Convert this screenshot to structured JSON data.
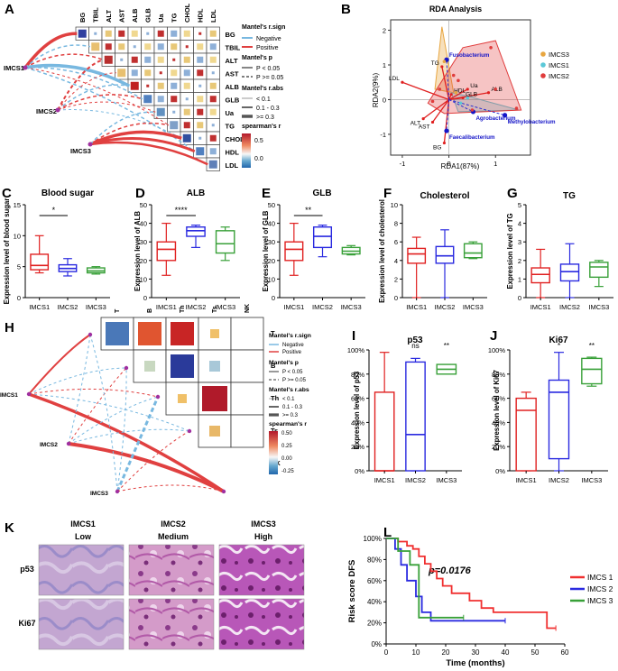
{
  "panels": {
    "A": {
      "letter": "A",
      "vars": [
        "BG",
        "TBIL",
        "ALT",
        "AST",
        "ALB",
        "GLB",
        "Ua",
        "TG",
        "CHOL",
        "HDL",
        "LDL"
      ],
      "groups": [
        "IMCS1",
        "IMCS2",
        "IMCS3"
      ],
      "legend": {
        "sign_title": "Mantel's r.sign",
        "neg": "Negative",
        "pos": "Positive",
        "p_title": "Mantel's p",
        "p1": "P < 0.05",
        "p2": "P >= 0.05",
        "r_title": "Mantel's r.abs",
        "r1": "< 0.1",
        "r2": "0.1 - 0.3",
        "r3": ">= 0.3",
        "s_title": "spearman's r",
        "s_ticks": [
          "0.5",
          "0.0"
        ]
      }
    },
    "B": {
      "letter": "B",
      "title": "RDA Analysis",
      "xlabel": "RDA1(87%)",
      "ylabel": "RDA2(9%)",
      "legend": [
        "IMCS3",
        "IMCS1",
        "IMCS2"
      ],
      "legend_colors": [
        "#e8a640",
        "#5bc8d8",
        "#e03c3c"
      ],
      "env_vectors": [
        {
          "name": "TG",
          "dx": -0.15,
          "dy": 0.95
        },
        {
          "name": "LDL",
          "dx": -1.0,
          "dy": 0.5
        },
        {
          "name": "ALB",
          "dx": 0.85,
          "dy": 0.2
        },
        {
          "name": "Ua",
          "dx": 0.4,
          "dy": 0.3
        },
        {
          "name": "ALT",
          "dx": -0.55,
          "dy": -0.55
        },
        {
          "name": "AST",
          "dx": -0.35,
          "dy": -0.65
        },
        {
          "name": "BG",
          "dx": -0.1,
          "dy": -1.25
        },
        {
          "name": "HDL",
          "dx": 0.05,
          "dy": 0.15
        },
        {
          "name": "GLB",
          "dx": 0.3,
          "dy": 0.05
        }
      ],
      "species": [
        {
          "name": "Fusobacterium",
          "x": -0.05,
          "y": 1.15
        },
        {
          "name": "Agrobacterium",
          "x": 0.52,
          "y": -0.35
        },
        {
          "name": "Methylobacterium",
          "x": 1.2,
          "y": -0.45
        },
        {
          "name": "Faecalibacterium",
          "x": -0.05,
          "y": -0.9
        }
      ]
    },
    "C": {
      "letter": "C",
      "title": "Blood sugar",
      "ylabel": "Expression level of blood sugar",
      "yticks": [
        "0",
        "5",
        "10",
        "15"
      ],
      "sig": "*"
    },
    "D": {
      "letter": "D",
      "title": "ALB",
      "ylabel": "Expression level of ALB",
      "yticks": [
        "0",
        "10",
        "20",
        "30",
        "40",
        "50"
      ],
      "sig": "****"
    },
    "E": {
      "letter": "E",
      "title": "GLB",
      "ylabel": "Expression level of GLB",
      "yticks": [
        "0",
        "10",
        "20",
        "30",
        "40",
        "50"
      ],
      "sig": "**"
    },
    "F": {
      "letter": "F",
      "title": "Cholesterol",
      "ylabel": "Expression level of cholesterol",
      "yticks": [
        "0",
        "2",
        "4",
        "6",
        "8",
        "10"
      ]
    },
    "G": {
      "letter": "G",
      "title": "TG",
      "ylabel": "Expression level of TG",
      "yticks": [
        "0",
        "1",
        "2",
        "3",
        "4",
        "5"
      ]
    },
    "H": {
      "letter": "H",
      "cells": [
        "T",
        "B",
        "Th",
        "Ts",
        "NK"
      ],
      "groups": [
        "IMCS1",
        "IMCS2",
        "IMCS3"
      ],
      "legend": {
        "sign_title": "Mantel's r.sign",
        "neg": "Negative",
        "pos": "Positive",
        "p_title": "Mantel's p",
        "p1": "P < 0.05",
        "p2": "P >= 0.05",
        "r_title": "Mantel's r.abs",
        "r1": "< 0.1",
        "r2": "0.1 - 0.3",
        "r3": ">= 0.3",
        "s_title": "spearman's r",
        "s_ticks": [
          "0.50",
          "0.25",
          "0.00",
          "-0.25"
        ]
      }
    },
    "I": {
      "letter": "I",
      "title": "p53",
      "ylabel": "Expression level of p53",
      "yticks": [
        "0%",
        "20%",
        "40%",
        "60%",
        "80%",
        "100%"
      ],
      "sig": [
        "ns",
        "**"
      ]
    },
    "J": {
      "letter": "J",
      "title": "Ki67",
      "ylabel": "Expression level of Ki67",
      "yticks": [
        "0%",
        "20%",
        "40%",
        "60%",
        "80%",
        "100%"
      ],
      "sig": [
        "*",
        "**"
      ]
    },
    "K": {
      "letter": "K",
      "cols": [
        {
          "name": "IMCS1",
          "level": "Low"
        },
        {
          "name": "IMCS2",
          "level": "Medium"
        },
        {
          "name": "IMCS3",
          "level": "High"
        }
      ],
      "rows": [
        "p53",
        "Ki67"
      ]
    },
    "L": {
      "letter": "L",
      "ylabel": "Risk score DFS",
      "xlabel": "Time (months)",
      "pvalue": "p=0.0176",
      "xticks": [
        "0",
        "10",
        "20",
        "30",
        "40",
        "50",
        "60"
      ],
      "yticks": [
        "0%",
        "20%",
        "40%",
        "60%",
        "80%",
        "100%"
      ],
      "legend": [
        "IMCS 1",
        "IMCS 2",
        "IMCS 3"
      ]
    }
  },
  "box_categories": [
    "IMCS1",
    "IMCS2",
    "IMCS3"
  ],
  "box_colors": [
    "#e02020",
    "#2a2ae0",
    "#38a038"
  ],
  "chart_data": [
    {
      "type": "box",
      "panel": "C",
      "title": "Blood sugar",
      "ylim": [
        0,
        15
      ],
      "categories": [
        "IMCS1",
        "IMCS2",
        "IMCS3"
      ],
      "boxes": [
        {
          "min": 4,
          "q1": 4.5,
          "med": 5.2,
          "q3": 7,
          "max": 10
        },
        {
          "min": 3.5,
          "q1": 4.2,
          "med": 4.7,
          "q3": 5.3,
          "max": 6.3
        },
        {
          "min": 3.8,
          "q1": 4,
          "med": 4.3,
          "q3": 4.8,
          "max": 5
        }
      ]
    },
    {
      "type": "box",
      "panel": "D",
      "title": "ALB",
      "ylim": [
        0,
        50
      ],
      "categories": [
        "IMCS1",
        "IMCS2",
        "IMCS3"
      ],
      "boxes": [
        {
          "min": 12,
          "q1": 20,
          "med": 26,
          "q3": 30,
          "max": 40
        },
        {
          "min": 27,
          "q1": 33,
          "med": 36,
          "q3": 38,
          "max": 39
        },
        {
          "min": 20,
          "q1": 24,
          "med": 29,
          "q3": 36,
          "max": 38
        }
      ]
    },
    {
      "type": "box",
      "panel": "E",
      "title": "GLB",
      "ylim": [
        0,
        50
      ],
      "categories": [
        "IMCS1",
        "IMCS2",
        "IMCS3"
      ],
      "boxes": [
        {
          "min": 12,
          "q1": 20,
          "med": 26,
          "q3": 30,
          "max": 40
        },
        {
          "min": 22,
          "q1": 27,
          "med": 33,
          "q3": 38,
          "max": 39
        },
        {
          "min": 23,
          "q1": 23.5,
          "med": 25,
          "q3": 27,
          "max": 28
        }
      ]
    },
    {
      "type": "box",
      "panel": "F",
      "title": "Cholesterol",
      "ylim": [
        0,
        10
      ],
      "categories": [
        "IMCS1",
        "IMCS2",
        "IMCS3"
      ],
      "boxes": [
        {
          "min": 0,
          "q1": 3.7,
          "med": 4.7,
          "q3": 5.3,
          "max": 6.5
        },
        {
          "min": 0,
          "q1": 3.7,
          "med": 4.5,
          "q3": 5.5,
          "max": 7.3
        },
        {
          "min": 4.2,
          "q1": 4.3,
          "med": 4.8,
          "q3": 5.8,
          "max": 6
        }
      ]
    },
    {
      "type": "box",
      "panel": "G",
      "title": "TG",
      "ylim": [
        0,
        5
      ],
      "categories": [
        "IMCS1",
        "IMCS2",
        "IMCS3"
      ],
      "boxes": [
        {
          "min": 0,
          "q1": 0.8,
          "med": 1.25,
          "q3": 1.6,
          "max": 2.6
        },
        {
          "min": 0,
          "q1": 0.9,
          "med": 1.4,
          "q3": 1.8,
          "max": 2.9
        },
        {
          "min": 0.6,
          "q1": 1.1,
          "med": 1.65,
          "q3": 1.9,
          "max": 2
        }
      ]
    },
    {
      "type": "box",
      "panel": "I",
      "title": "p53",
      "ylim": [
        0,
        100
      ],
      "categories": [
        "IMCS1",
        "IMCS2",
        "IMCS3"
      ],
      "boxes": [
        {
          "min": 0,
          "q1": 0,
          "med": 0,
          "q3": 65,
          "max": 98
        },
        {
          "min": 0,
          "q1": 0,
          "med": 30,
          "q3": 90,
          "max": 93
        },
        {
          "min": 80,
          "q1": 80,
          "med": 84,
          "q3": 88,
          "max": 88
        }
      ]
    },
    {
      "type": "box",
      "panel": "J",
      "title": "Ki67",
      "ylim": [
        0,
        100
      ],
      "categories": [
        "IMCS1",
        "IMCS2",
        "IMCS3"
      ],
      "boxes": [
        {
          "min": 0,
          "q1": 0,
          "med": 50,
          "q3": 60,
          "max": 65
        },
        {
          "min": 0,
          "q1": 10,
          "med": 65,
          "q3": 75,
          "max": 98
        },
        {
          "min": 70,
          "q1": 72,
          "med": 84,
          "q3": 93,
          "max": 94
        }
      ]
    },
    {
      "type": "line",
      "panel": "L",
      "subtype": "kaplan-meier",
      "xlim": [
        0,
        60
      ],
      "ylim": [
        0,
        100
      ],
      "series": [
        {
          "name": "IMCS 1",
          "color": "#f03030",
          "points": [
            [
              0,
              100
            ],
            [
              4,
              100
            ],
            [
              4,
              97
            ],
            [
              7,
              97
            ],
            [
              7,
              93
            ],
            [
              9,
              93
            ],
            [
              9,
              90
            ],
            [
              11,
              90
            ],
            [
              11,
              83
            ],
            [
              13,
              83
            ],
            [
              13,
              76
            ],
            [
              15,
              76
            ],
            [
              15,
              69
            ],
            [
              17,
              69
            ],
            [
              17,
              62
            ],
            [
              19,
              62
            ],
            [
              19,
              55
            ],
            [
              22,
              55
            ],
            [
              22,
              48
            ],
            [
              28,
              48
            ],
            [
              28,
              41
            ],
            [
              32,
              41
            ],
            [
              32,
              34
            ],
            [
              36,
              34
            ],
            [
              36,
              30
            ],
            [
              54,
              30
            ],
            [
              54,
              15
            ],
            [
              57,
              15
            ]
          ]
        },
        {
          "name": "IMCS 2",
          "color": "#2a2ae0",
          "points": [
            [
              0,
              100
            ],
            [
              3,
              100
            ],
            [
              3,
              90
            ],
            [
              5,
              90
            ],
            [
              5,
              75
            ],
            [
              7,
              75
            ],
            [
              7,
              60
            ],
            [
              10,
              60
            ],
            [
              10,
              45
            ],
            [
              12,
              45
            ],
            [
              12,
              30
            ],
            [
              15,
              30
            ],
            [
              15,
              22
            ],
            [
              40,
              22
            ]
          ]
        },
        {
          "name": "IMCS 3",
          "color": "#38a038",
          "points": [
            [
              0,
              100
            ],
            [
              4,
              100
            ],
            [
              4,
              88
            ],
            [
              8,
              88
            ],
            [
              8,
              75
            ],
            [
              11,
              75
            ],
            [
              11,
              25
            ],
            [
              26,
              25
            ]
          ]
        }
      ]
    }
  ]
}
